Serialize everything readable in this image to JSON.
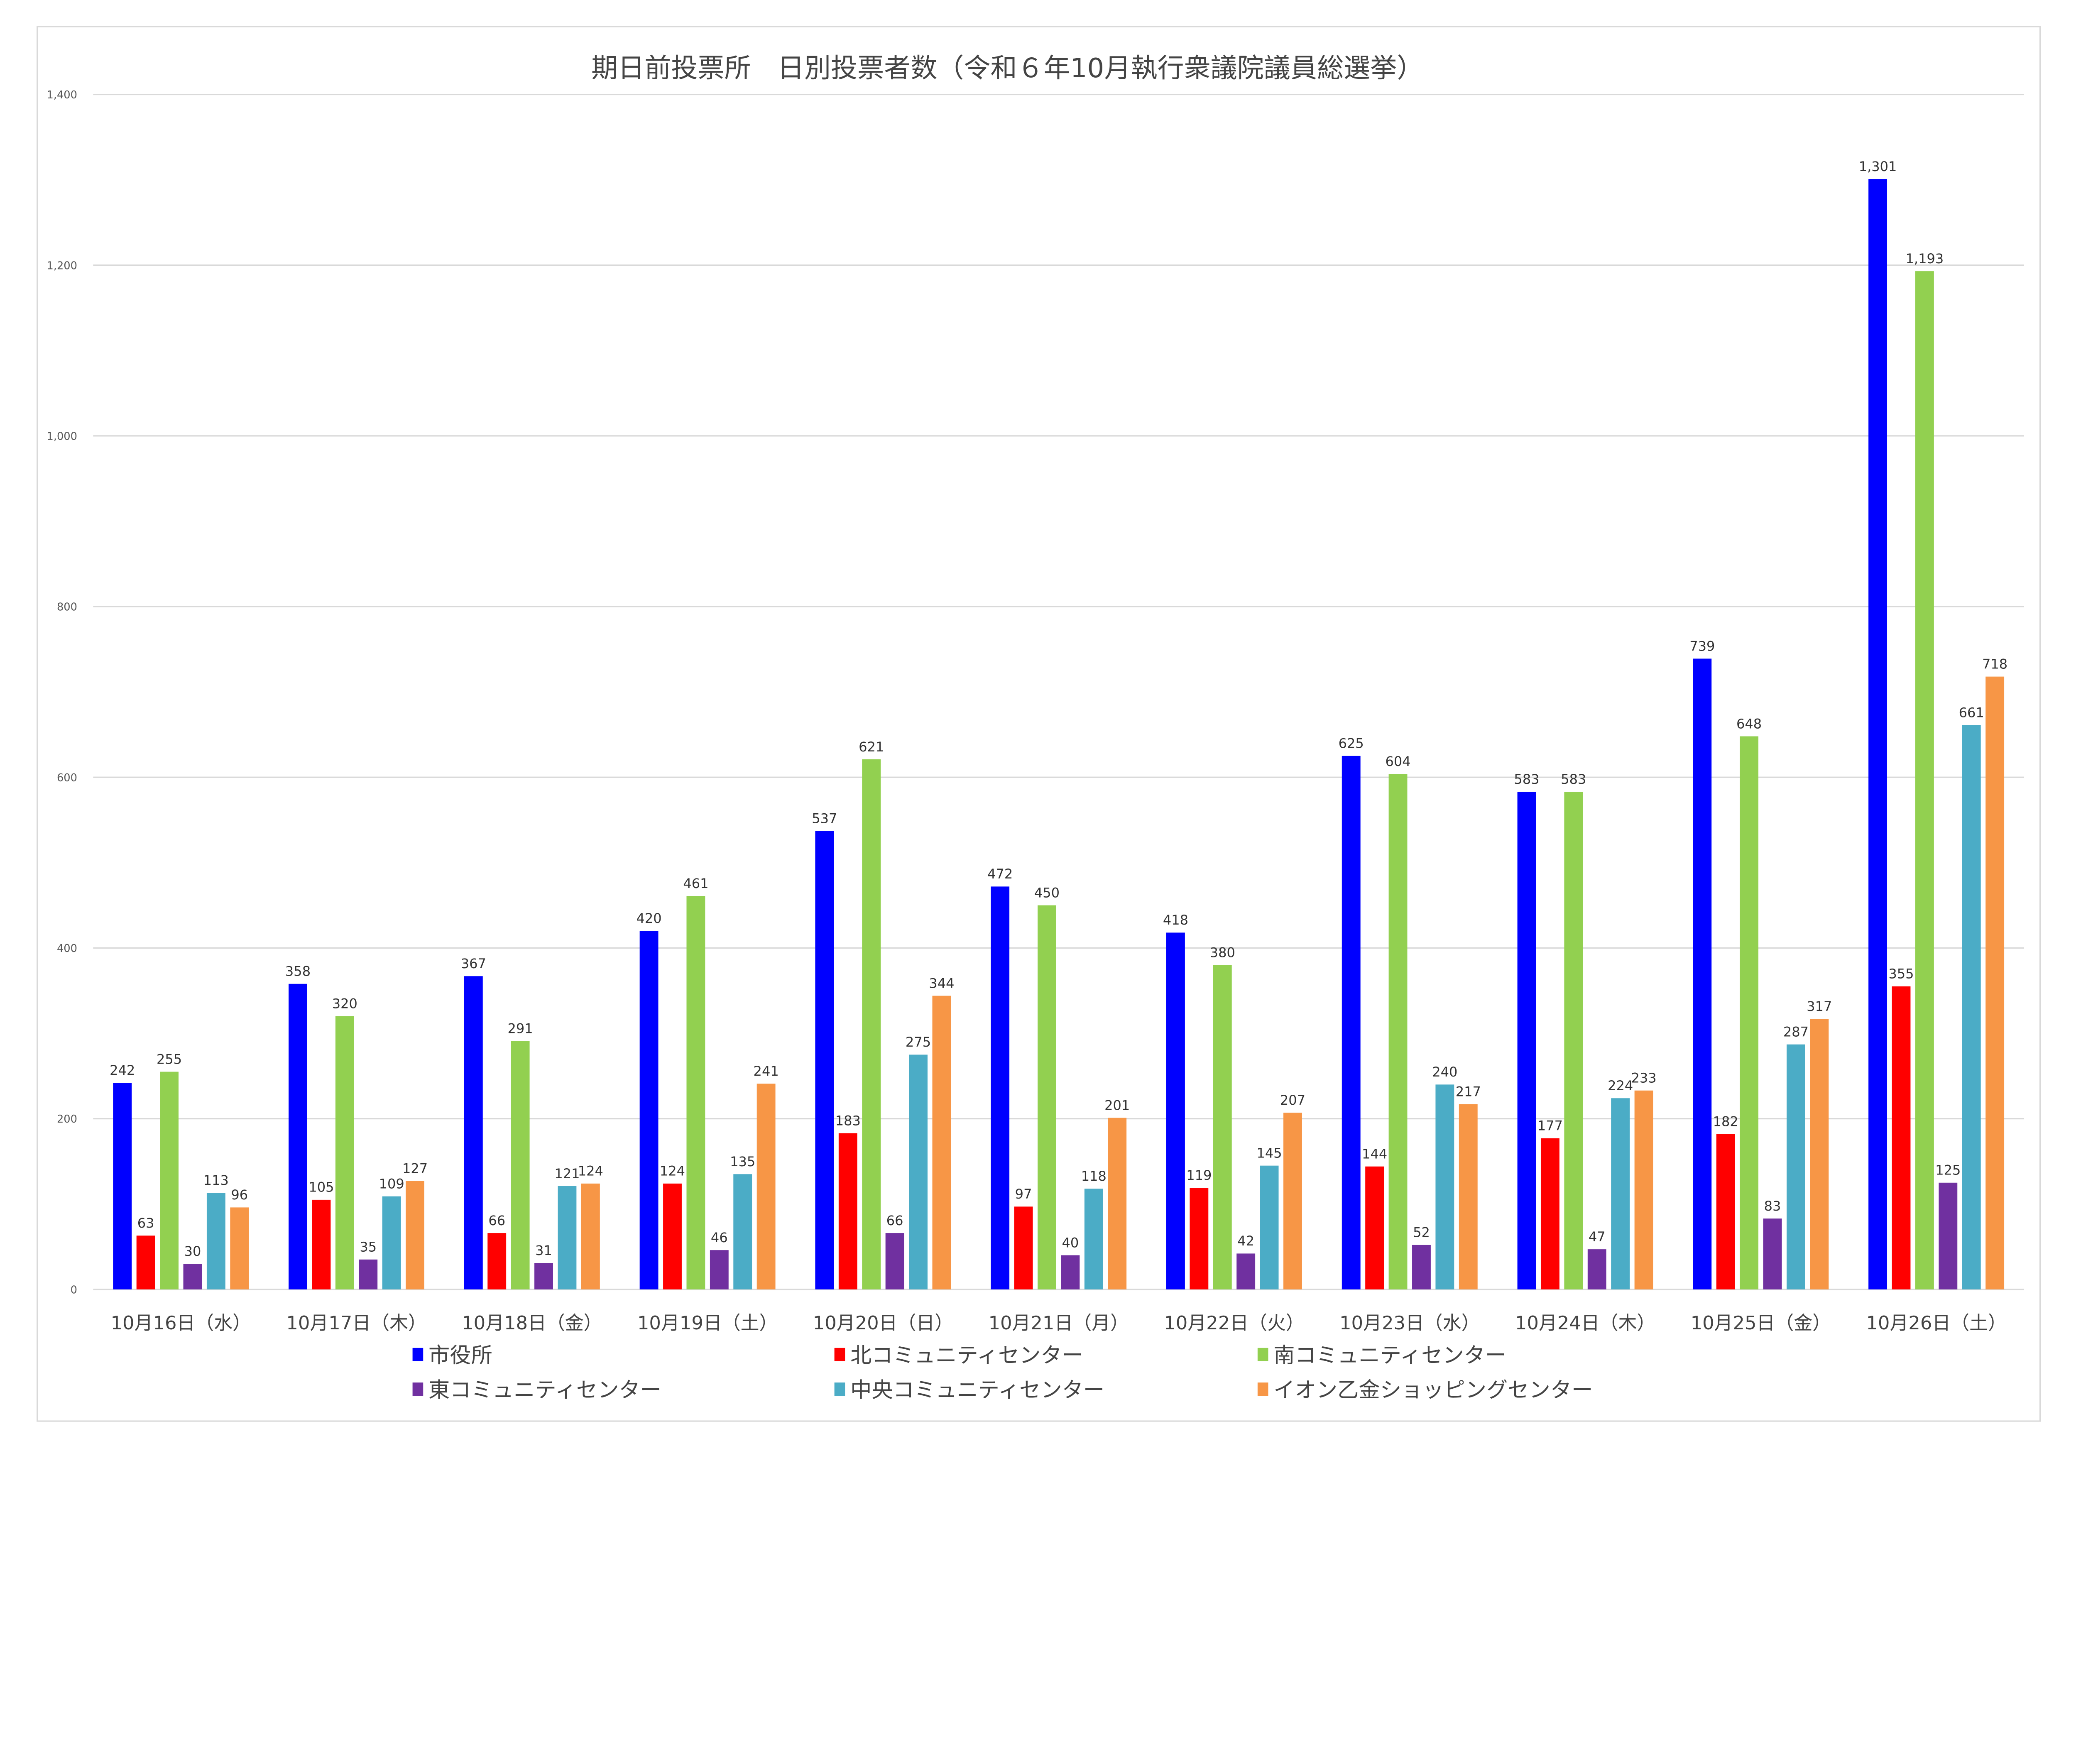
{
  "chart_data": {
    "type": "bar",
    "title": "期日前投票所　日別投票者数（令和６年10月執行衆議院議員総選挙）",
    "xlabel": "",
    "ylabel": "",
    "ylim": [
      0,
      1400
    ],
    "yticks": [
      0,
      200,
      400,
      600,
      800,
      1000,
      1200,
      1400
    ],
    "ytick_labels": [
      "0",
      "200",
      "400",
      "600",
      "800",
      "1,000",
      "1,200",
      "1,400"
    ],
    "grid": true,
    "legend_position": "bottom",
    "categories": [
      "10月16日（水）",
      "10月17日（木）",
      "10月18日（金）",
      "10月19日（土）",
      "10月20日（日）",
      "10月21日（月）",
      "10月22日（火）",
      "10月23日（水）",
      "10月24日（木）",
      "10月25日（金）",
      "10月26日（土）"
    ],
    "series": [
      {
        "name": "市役所",
        "color": "#0000FF",
        "values": [
          242,
          358,
          367,
          420,
          537,
          472,
          418,
          625,
          583,
          739,
          1301
        ]
      },
      {
        "name": "北コミュニティセンター",
        "color": "#FF0000",
        "values": [
          63,
          105,
          66,
          124,
          183,
          97,
          119,
          144,
          177,
          182,
          355
        ]
      },
      {
        "name": "南コミュニティセンター",
        "color": "#92D050",
        "values": [
          255,
          320,
          291,
          461,
          621,
          450,
          380,
          604,
          583,
          648,
          1193
        ]
      },
      {
        "name": "東コミュニティセンター",
        "color": "#7030A0",
        "values": [
          30,
          35,
          31,
          46,
          66,
          40,
          42,
          52,
          47,
          83,
          125
        ]
      },
      {
        "name": "中央コミュニティセンター",
        "color": "#4BACC6",
        "values": [
          113,
          109,
          121,
          135,
          275,
          118,
          145,
          240,
          224,
          287,
          661
        ]
      },
      {
        "name": "イオン乙金ショッピングセンター",
        "color": "#F79646",
        "values": [
          96,
          127,
          124,
          241,
          344,
          201,
          207,
          217,
          233,
          317,
          718
        ]
      }
    ]
  }
}
